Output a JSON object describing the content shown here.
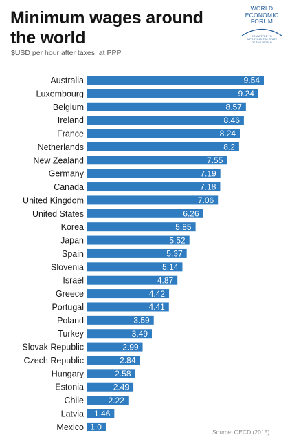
{
  "logo": {
    "line1": "WORLD",
    "line2": "ECONOMIC",
    "line3": "FORUM",
    "tagline1": "COMMITTED TO",
    "tagline2": "IMPROVING THE STATE",
    "tagline3": "OF THE WORLD"
  },
  "source": "Source: OECD (2015)",
  "chart_data": {
    "type": "bar",
    "orientation": "horizontal",
    "title": "Minimum wages around the world",
    "subtitle": "$USD per hour after taxes, at PPP",
    "categories": [
      "Australia",
      "Luxembourg",
      "Belgium",
      "Ireland",
      "France",
      "Netherlands",
      "New Zealand",
      "Germany",
      "Canada",
      "United Kingdom",
      "United States",
      "Korea",
      "Japan",
      "Spain",
      "Slovenia",
      "Israel",
      "Greece",
      "Portugal",
      "Poland",
      "Turkey",
      "Slovak Republic",
      "Czech Republic",
      "Hungary",
      "Estonia",
      "Chile",
      "Latvia",
      "Mexico"
    ],
    "values": [
      9.54,
      9.24,
      8.57,
      8.46,
      8.24,
      8.2,
      7.55,
      7.19,
      7.18,
      7.06,
      6.26,
      5.85,
      5.52,
      5.37,
      5.14,
      4.87,
      4.42,
      4.41,
      3.59,
      3.49,
      2.99,
      2.84,
      2.58,
      2.49,
      2.22,
      1.46,
      1.0
    ],
    "value_labels": [
      "9.54",
      "9.24",
      "8.57",
      "8.46",
      "8.24",
      "8.2",
      "7.55",
      "7.19",
      "7.18",
      "7.06",
      "6.26",
      "5.85",
      "5.52",
      "5.37",
      "5.14",
      "4.87",
      "4.42",
      "4.41",
      "3.59",
      "3.49",
      "2.99",
      "2.84",
      "2.58",
      "2.49",
      "2.22",
      "1.46",
      "1.0"
    ],
    "bar_color": "#2f7cc1",
    "xlim": [
      0,
      9.54
    ],
    "grid": false,
    "legend": "none"
  }
}
